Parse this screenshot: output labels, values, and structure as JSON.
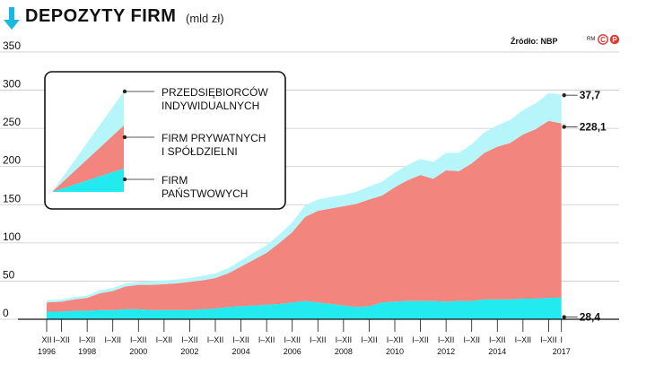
{
  "header": {
    "title": "DEPOZYTY FIRM",
    "unit": "(mld zł)",
    "source": "Źródło: NBP",
    "credit": "RM",
    "colors": {
      "accent": "#19b8e0"
    }
  },
  "chart_data": {
    "type": "area",
    "stacked": true,
    "x": [
      1996.92,
      1997.5,
      1998,
      1998.5,
      1999,
      1999.5,
      2000,
      2000.5,
      2001,
      2001.5,
      2002,
      2002.5,
      2003,
      2003.5,
      2004,
      2004.5,
      2005,
      2005.5,
      2006,
      2006.5,
      2007,
      2007.5,
      2008,
      2008.5,
      2009,
      2009.5,
      2010,
      2010.5,
      2011,
      2011.5,
      2012,
      2012.5,
      2013,
      2013.5,
      2014,
      2014.5,
      2015,
      2015.5,
      2016,
      2016.5,
      2017
    ],
    "series": [
      {
        "name": "FIRM PAŃSTWOWYCH",
        "color": "#22eaee",
        "values": [
          10,
          10,
          11,
          11,
          12,
          12,
          13,
          13,
          12,
          12,
          12,
          12,
          13,
          14,
          16,
          17,
          18,
          19,
          20,
          22,
          24,
          22,
          20,
          18,
          16,
          17,
          22,
          23,
          24,
          24,
          24,
          23,
          24,
          24,
          26,
          26,
          26,
          27,
          27,
          28,
          28.4
        ]
      },
      {
        "name": "FIRM PRYWATNYCH I SPÓŁDZIELNI",
        "color": "#f2857e",
        "values": [
          12,
          13,
          15,
          17,
          22,
          25,
          30,
          32,
          33,
          34,
          35,
          37,
          38,
          40,
          44,
          52,
          60,
          68,
          80,
          92,
          110,
          120,
          125,
          130,
          135,
          140,
          140,
          150,
          158,
          165,
          160,
          172,
          170,
          180,
          192,
          200,
          205,
          215,
          222,
          232,
          228.1
        ]
      },
      {
        "name": "PRZEDSIĘBIORCÓW INDYWIDUALNYCH",
        "color": "#b6f6fa",
        "values": [
          3,
          3,
          3,
          3,
          4,
          4,
          4,
          4,
          5,
          5,
          5,
          5,
          6,
          6,
          7,
          8,
          9,
          10,
          11,
          13,
          15,
          15,
          15,
          15,
          16,
          17,
          18,
          19,
          20,
          21,
          22,
          23,
          24,
          25,
          27,
          28,
          30,
          32,
          34,
          36,
          37.7
        ]
      }
    ],
    "end_labels": [
      "28,4",
      "228,1",
      "37,7"
    ],
    "ylim": [
      0,
      350
    ],
    "yticks": [
      0,
      50,
      100,
      150,
      200,
      250,
      300,
      350
    ],
    "xlim": [
      1996.5,
      2017.5
    ],
    "xticks": [
      {
        "x": 1996.92,
        "label": "XII",
        "year": "1996"
      },
      {
        "x": 1997.5,
        "label": "I–XII",
        "year": ""
      },
      {
        "x": 1998.5,
        "label": "I–XII",
        "year": "1998"
      },
      {
        "x": 1999.5,
        "label": "I–XII",
        "year": ""
      },
      {
        "x": 2000.5,
        "label": "I–XII",
        "year": "2000"
      },
      {
        "x": 2001.5,
        "label": "I–XII",
        "year": ""
      },
      {
        "x": 2002.5,
        "label": "I–XII",
        "year": "2002"
      },
      {
        "x": 2003.5,
        "label": "I–XII",
        "year": ""
      },
      {
        "x": 2004.5,
        "label": "I–XII",
        "year": "2004"
      },
      {
        "x": 2005.5,
        "label": "I–XII",
        "year": ""
      },
      {
        "x": 2006.5,
        "label": "I–XII",
        "year": "2006"
      },
      {
        "x": 2007.5,
        "label": "I–XII",
        "year": ""
      },
      {
        "x": 2008.5,
        "label": "I–XII",
        "year": "2008"
      },
      {
        "x": 2009.5,
        "label": "I–XII",
        "year": ""
      },
      {
        "x": 2010.5,
        "label": "I–XII",
        "year": "2010"
      },
      {
        "x": 2011.5,
        "label": "I–XII",
        "year": ""
      },
      {
        "x": 2012.5,
        "label": "I–XII",
        "year": "2012"
      },
      {
        "x": 2013.5,
        "label": "I–XII",
        "year": ""
      },
      {
        "x": 2014.5,
        "label": "I–XII",
        "year": "2014"
      },
      {
        "x": 2015.5,
        "label": "I–XII",
        "year": ""
      },
      {
        "x": 2016.5,
        "label": "I–XII",
        "year": ""
      },
      {
        "x": 2017.0,
        "label": "I",
        "year": "2017"
      }
    ],
    "legend": {
      "placement": "top-left",
      "items": [
        {
          "line1": "PRZEDSIĘBIORCÓW",
          "line2": "INDYWIDUALNYCH",
          "color": "#b6f6fa"
        },
        {
          "line1": "FIRM PRYWATNYCH",
          "line2": "I SPÓŁDZIELNI",
          "color": "#f2857e"
        },
        {
          "line1": "FIRM",
          "line2": "PAŃSTWOWYCH",
          "color": "#22eaee"
        }
      ]
    },
    "grid": true
  }
}
